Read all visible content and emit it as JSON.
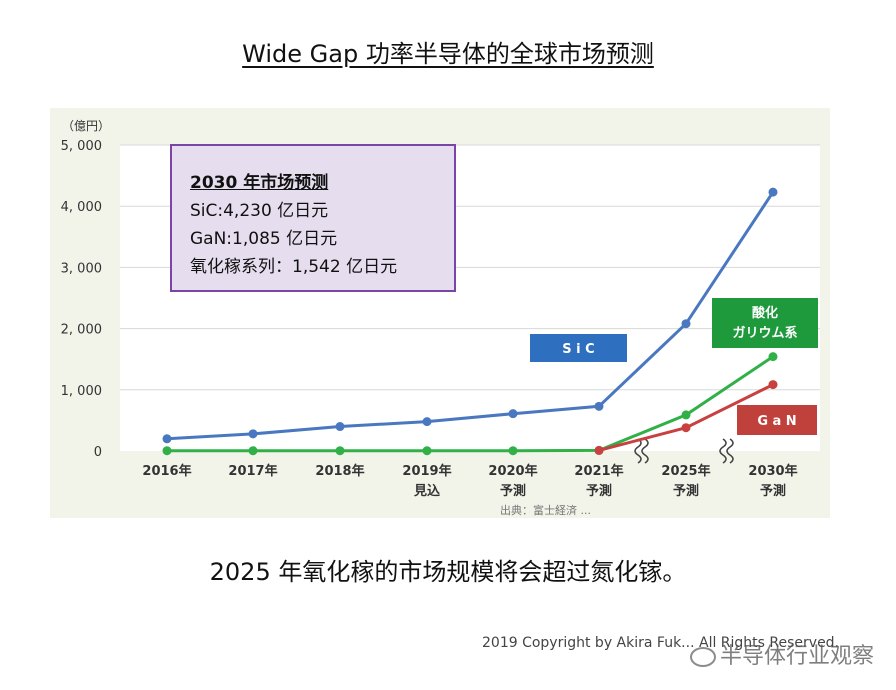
{
  "title": "Wide Gap 功率半导体的全球市场预测",
  "caption": "2025 年氧化稼的市场规模将会超过氮化镓。",
  "copyright": "2019 Copyright by Akira Fuk... All Rights Reserved.",
  "watermark": "半导体行业观察",
  "annotation": {
    "heading": "2030 年市场预测",
    "lines": [
      "SiC:4,230 亿日元",
      "GaN:1,085 亿日元",
      "氧化稼系列：1,542 亿日元"
    ]
  },
  "chart_data": {
    "type": "line",
    "y_unit_label": "（億円）",
    "ylim": [
      0,
      5000
    ],
    "yticks": [
      "5, 000",
      "4, 000",
      "3, 000",
      "2, 000",
      "1, 000",
      "0"
    ],
    "categories": [
      [
        "2016年",
        ""
      ],
      [
        "2017年",
        ""
      ],
      [
        "2018年",
        ""
      ],
      [
        "2019年",
        "見込"
      ],
      [
        "2020年",
        "予測"
      ],
      [
        "2021年",
        "予測"
      ],
      [
        "2025年",
        "予測"
      ],
      [
        "2030年",
        "予測"
      ]
    ],
    "grid": true,
    "series": [
      {
        "name": "S i C",
        "color": "#4a78c0",
        "label_bg": "#2f6fc0",
        "values": [
          200,
          280,
          400,
          480,
          610,
          730,
          2080,
          4230
        ]
      },
      {
        "name": "酸化\nガリウム系",
        "color": "#32b048",
        "label_bg": "#1e9a3c",
        "values": [
          5,
          5,
          5,
          5,
          5,
          10,
          590,
          1542
        ]
      },
      {
        "name": "G a N",
        "color": "#c84040",
        "label_bg": "#c0403c",
        "values": [
          null,
          null,
          null,
          null,
          null,
          10,
          380,
          1085
        ]
      }
    ],
    "footnote": "出典：富士経済 ..."
  }
}
